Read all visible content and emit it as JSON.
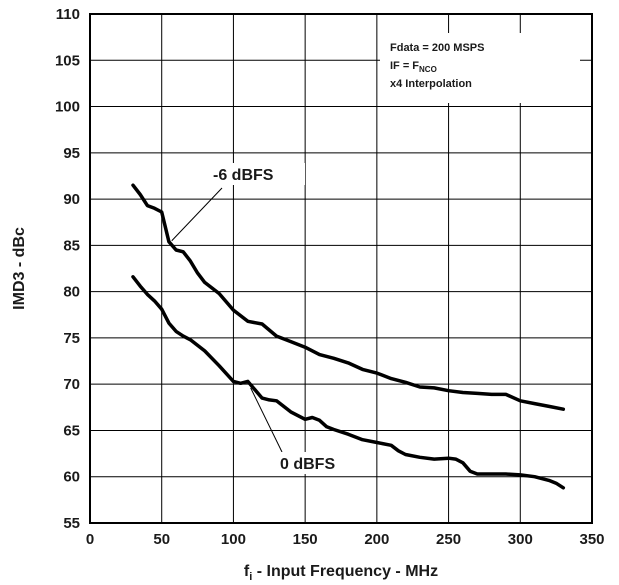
{
  "chart_data": {
    "type": "line",
    "title": "",
    "xlabel_main": "f",
    "xlabel_sub": "i",
    "xlabel_rest": " - Input Frequency - MHz",
    "ylabel": "IMD3 - dBc",
    "xlim": [
      0,
      350
    ],
    "ylim": [
      55,
      110
    ],
    "x_ticks": [
      "0",
      "50",
      "100",
      "150",
      "200",
      "250",
      "300",
      "350"
    ],
    "y_ticks": [
      "55",
      "60",
      "65",
      "70",
      "75",
      "80",
      "85",
      "90",
      "95",
      "100",
      "105",
      "110"
    ],
    "grid": true,
    "conditions": {
      "line1": "Fdata = 200 MSPS",
      "line2_main": "IF = F",
      "line2_sub": "NCO",
      "line3": "x4 Interpolation"
    },
    "series": [
      {
        "name": "-6 dBFS",
        "x": [
          30,
          35,
          40,
          45,
          50,
          55,
          60,
          65,
          70,
          75,
          80,
          90,
          100,
          110,
          120,
          130,
          140,
          150,
          160,
          170,
          180,
          190,
          200,
          210,
          220,
          230,
          240,
          250,
          260,
          270,
          280,
          290,
          300,
          310,
          320,
          330
        ],
        "y": [
          91.5,
          90.5,
          89.3,
          89.0,
          88.6,
          85.4,
          84.5,
          84.3,
          83.3,
          82.0,
          81.0,
          79.8,
          78.0,
          76.8,
          76.5,
          75.2,
          74.6,
          74.0,
          73.2,
          72.8,
          72.3,
          71.6,
          71.2,
          70.6,
          70.2,
          69.7,
          69.6,
          69.3,
          69.1,
          69.0,
          68.9,
          68.9,
          68.2,
          67.9,
          67.6,
          67.3
        ]
      },
      {
        "name": "0 dBFS",
        "x": [
          30,
          35,
          40,
          45,
          50,
          55,
          60,
          65,
          70,
          80,
          90,
          100,
          105,
          110,
          115,
          120,
          125,
          130,
          140,
          150,
          155,
          160,
          165,
          170,
          180,
          190,
          200,
          210,
          215,
          220,
          230,
          240,
          250,
          255,
          260,
          265,
          270,
          280,
          290,
          300,
          310,
          320,
          325,
          330
        ],
        "y": [
          81.6,
          80.6,
          79.7,
          79.0,
          78.1,
          76.6,
          75.7,
          75.2,
          74.8,
          73.6,
          72.0,
          70.3,
          70.1,
          70.3,
          69.4,
          68.5,
          68.3,
          68.2,
          67.0,
          66.2,
          66.4,
          66.1,
          65.4,
          65.1,
          64.6,
          64.0,
          63.7,
          63.4,
          62.8,
          62.4,
          62.1,
          61.9,
          62.0,
          61.9,
          61.5,
          60.6,
          60.3,
          60.3,
          60.3,
          60.2,
          60.0,
          59.6,
          59.3,
          58.8
        ]
      }
    ],
    "annotations": [
      "-6 dBFS",
      "0 dBFS"
    ]
  }
}
